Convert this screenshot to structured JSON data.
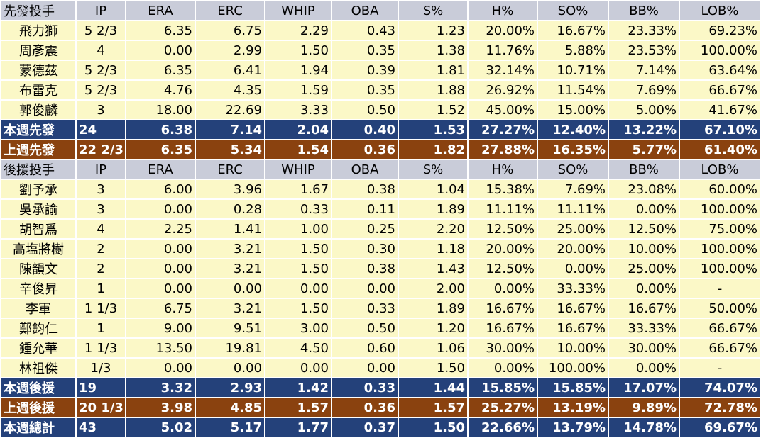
{
  "headers_starters": [
    "先發投手",
    "IP",
    "ERA",
    "ERC",
    "WHIP",
    "OBA",
    "S%",
    "H%",
    "SO%",
    "BB%",
    "LOB%"
  ],
  "starters": [
    [
      "飛力獅",
      "5 2/3",
      "6.35",
      "6.75",
      "2.29",
      "0.43",
      "1.23",
      "20.00%",
      "16.67%",
      "23.33%",
      "69.23%"
    ],
    [
      "周彥震",
      "4",
      "0.00",
      "2.99",
      "1.50",
      "0.35",
      "1.38",
      "11.76%",
      "5.88%",
      "23.53%",
      "100.00%"
    ],
    [
      "蒙德茲",
      "5 2/3",
      "6.35",
      "6.41",
      "1.94",
      "0.39",
      "1.81",
      "32.14%",
      "10.71%",
      "7.14%",
      "63.64%"
    ],
    [
      "布雷克",
      "5 2/3",
      "4.76",
      "4.35",
      "1.59",
      "0.35",
      "1.88",
      "26.92%",
      "11.54%",
      "7.69%",
      "66.67%"
    ],
    [
      "郭俊麟",
      "3",
      "18.00",
      "22.69",
      "3.33",
      "0.50",
      "1.52",
      "45.00%",
      "15.00%",
      "5.00%",
      "41.67%"
    ]
  ],
  "starters_week": [
    "本週先發",
    "24",
    "6.38",
    "7.14",
    "2.04",
    "0.40",
    "1.53",
    "27.27%",
    "12.40%",
    "13.22%",
    "67.10%"
  ],
  "starters_last": [
    "上週先發",
    "22 2/3",
    "6.35",
    "5.34",
    "1.54",
    "0.36",
    "1.82",
    "27.88%",
    "16.35%",
    "5.77%",
    "61.40%"
  ],
  "headers_relievers": [
    "後援投手",
    "IP",
    "ERA",
    "ERC",
    "WHIP",
    "OBA",
    "S%",
    "H%",
    "SO%",
    "BB%",
    "LOB%"
  ],
  "relievers": [
    [
      "劉予承",
      "3",
      "6.00",
      "3.96",
      "1.67",
      "0.38",
      "1.04",
      "15.38%",
      "7.69%",
      "23.08%",
      "60.00%"
    ],
    [
      "吳承諭",
      "3",
      "0.00",
      "0.28",
      "0.33",
      "0.11",
      "1.89",
      "11.11%",
      "11.11%",
      "0.00%",
      "100.00%"
    ],
    [
      "胡智爲",
      "4",
      "2.25",
      "1.41",
      "1.00",
      "0.25",
      "2.20",
      "12.50%",
      "25.00%",
      "12.50%",
      "75.00%"
    ],
    [
      "高塩將樹",
      "2",
      "0.00",
      "3.21",
      "1.50",
      "0.30",
      "1.18",
      "20.00%",
      "20.00%",
      "10.00%",
      "100.00%"
    ],
    [
      "陳韻文",
      "2",
      "0.00",
      "3.21",
      "1.50",
      "0.38",
      "1.43",
      "12.50%",
      "0.00%",
      "25.00%",
      "100.00%"
    ],
    [
      "辛俊昇",
      "1",
      "0.00",
      "0.00",
      "0.00",
      "0.00",
      "2.00",
      "0.00%",
      "33.33%",
      "0.00%",
      "-"
    ],
    [
      "李軍",
      "1 1/3",
      "6.75",
      "3.21",
      "1.50",
      "0.33",
      "1.89",
      "16.67%",
      "16.67%",
      "16.67%",
      "50.00%"
    ],
    [
      "鄭鈞仁",
      "1",
      "9.00",
      "9.51",
      "3.00",
      "0.50",
      "1.20",
      "16.67%",
      "16.67%",
      "33.33%",
      "66.67%"
    ],
    [
      "鍾允華",
      "1 1/3",
      "13.50",
      "19.81",
      "4.50",
      "0.60",
      "1.06",
      "30.00%",
      "10.00%",
      "30.00%",
      "66.67%"
    ],
    [
      "林祖傑",
      "1/3",
      "0.00",
      "0.00",
      "0.00",
      "0.00",
      "1.50",
      "0.00%",
      "100.00%",
      "0.00%",
      "-"
    ]
  ],
  "relievers_week": [
    "本週後援",
    "19",
    "3.32",
    "2.93",
    "1.42",
    "0.33",
    "1.44",
    "15.85%",
    "15.85%",
    "17.07%",
    "74.07%"
  ],
  "relievers_last": [
    "上週後援",
    "20 1/3",
    "3.98",
    "4.85",
    "1.57",
    "0.36",
    "1.57",
    "25.27%",
    "13.19%",
    "9.89%",
    "72.78%"
  ],
  "total_week": [
    "本週總計",
    "43",
    "5.02",
    "5.17",
    "1.77",
    "0.37",
    "1.50",
    "22.66%",
    "13.79%",
    "14.78%",
    "69.67%"
  ],
  "colors": {
    "header_bg": "#c9ccd9",
    "row_bg": "#fbf8c7",
    "blue_bg": "#24417a",
    "brown_bg": "#8a420f"
  }
}
